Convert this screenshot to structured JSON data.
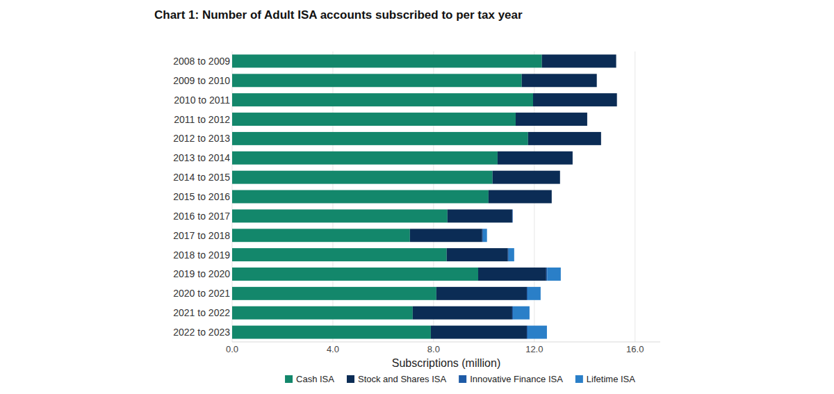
{
  "chart_data": {
    "type": "bar",
    "title": "Chart 1: Number of Adult ISA accounts subscribed to per tax year",
    "x_label": "Subscriptions (million)",
    "orientation": "horizontal",
    "stacked": true,
    "grid": true,
    "legend": "bottom",
    "categories": [
      "2008 to 2009",
      "2009 to 2010",
      "2010 to 2011",
      "2011 to 2012",
      "2012 to 2013",
      "2013 to 2014",
      "2014 to 2015",
      "2015 to 2016",
      "2016 to 2017",
      "2017 to 2018",
      "2018 to 2019",
      "2019 to 2020",
      "2020 to 2021",
      "2021 to 2022",
      "2022 to 2023"
    ],
    "series": [
      {
        "name": "Cash ISA",
        "color": "#13876b",
        "values": [
          12.3,
          11.5,
          11.95,
          11.26,
          11.75,
          10.54,
          10.34,
          10.18,
          8.55,
          7.06,
          8.52,
          9.77,
          8.11,
          7.17,
          7.89
        ]
      },
      {
        "name": "Stock and Shares ISA",
        "color": "#0b2c55",
        "values": [
          2.95,
          2.98,
          3.33,
          2.84,
          2.9,
          2.98,
          2.68,
          2.51,
          2.57,
          2.87,
          2.43,
          2.7,
          3.59,
          3.95,
          3.81
        ]
      },
      {
        "name": "Innovative Finance ISA",
        "color": "#1d5aa6",
        "values": [
          null,
          null,
          null,
          null,
          null,
          null,
          null,
          null,
          0.02,
          0.03,
          0.03,
          0.04,
          0.03,
          0.03,
          0.03
        ]
      },
      {
        "name": "Lifetime ISA",
        "color": "#2a7fc8",
        "values": [
          null,
          null,
          null,
          null,
          null,
          null,
          null,
          null,
          null,
          0.16,
          0.22,
          0.54,
          0.52,
          0.66,
          0.77
        ]
      }
    ],
    "xlim": [
      0,
      17
    ],
    "xticks": [
      {
        "value": 0,
        "label": "0.0"
      },
      {
        "value": 4,
        "label": "4.0"
      },
      {
        "value": 8,
        "label": "8.0"
      },
      {
        "value": 12,
        "label": "12.0"
      },
      {
        "value": 16,
        "label": "16.0"
      }
    ]
  }
}
